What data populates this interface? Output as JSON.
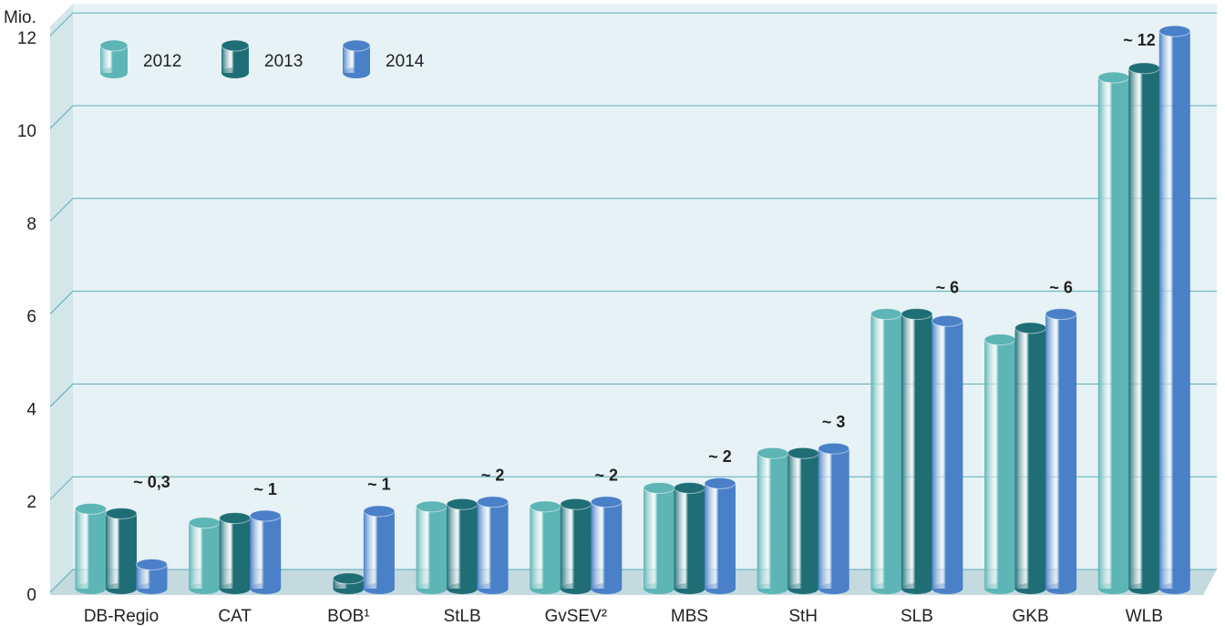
{
  "chart_data": {
    "type": "bar",
    "y_axis_label": "Mio.",
    "categories": [
      "DB-Regio",
      "CAT",
      "BOB¹",
      "StLB",
      "GvSEV²",
      "MBS",
      "StH",
      "SLB",
      "GKB",
      "WLB"
    ],
    "series": [
      {
        "name": "2012",
        "color": "#5db5b5",
        "values": [
          1.8,
          1.5,
          null,
          1.85,
          1.85,
          2.25,
          3.0,
          6.0,
          5.45,
          11.1
        ]
      },
      {
        "name": "2013",
        "color": "#1f6e76",
        "values": [
          1.7,
          1.6,
          0.3,
          1.9,
          1.9,
          2.25,
          3.0,
          6.0,
          5.7,
          11.3
        ]
      },
      {
        "name": "2014",
        "color": "#4a80c8",
        "values": [
          0.6,
          1.65,
          1.75,
          1.95,
          1.95,
          2.35,
          3.1,
          5.85,
          6.0,
          12.1
        ]
      }
    ],
    "annotations": [
      "~ 0,3",
      "~ 1",
      "~ 1",
      "~ 2",
      "~ 2",
      "~ 2",
      "~ 3",
      "~ 6",
      "~ 6",
      "~ 12"
    ],
    "ylim": [
      0,
      12
    ],
    "yticks": [
      0,
      2,
      4,
      6,
      8,
      10,
      12
    ],
    "grid": true,
    "legend": "top-left"
  }
}
